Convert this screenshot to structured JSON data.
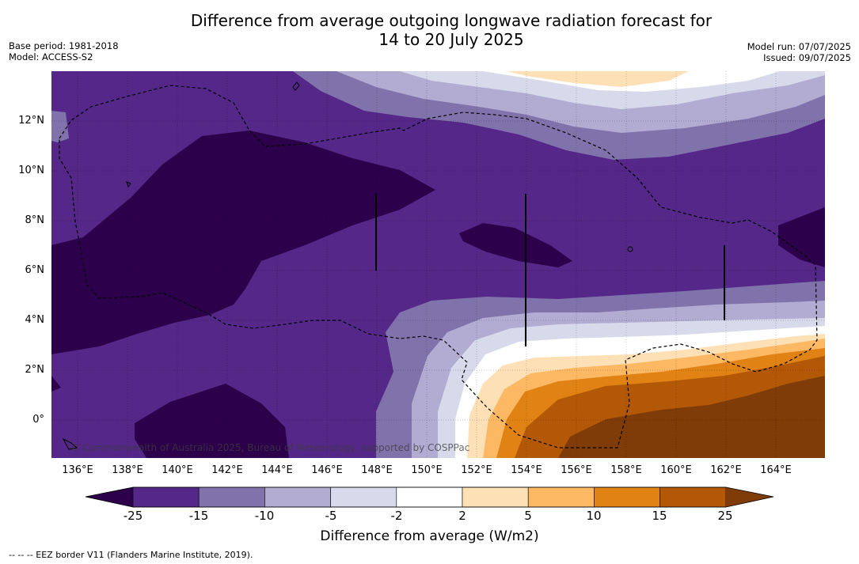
{
  "title_line1": "Difference from average outgoing longwave radiation forecast for",
  "title_line2": "14 to 20 July 2025",
  "base_period": "Base period: 1981-2018",
  "model": "Model: ACCESS-S2",
  "model_run": "Model run: 07/07/2025",
  "issued": "Issued: 09/07/2025",
  "copyright": "© Commonwealth of Australia 2025, Bureau of Meteorology, supported by COSPPac",
  "colorbar_label": "Difference from average (W/m2)",
  "footnote": "--  --  -- EEZ border V11 (Flanders Marine Institute, 2019).",
  "lat_labels": [
    "12°N",
    "10°N",
    "8°N",
    "6°N",
    "4°N",
    "2°N",
    "0°"
  ],
  "lon_labels": [
    "136°E",
    "138°E",
    "140°E",
    "142°E",
    "144°E",
    "146°E",
    "148°E",
    "150°E",
    "152°E",
    "154°E",
    "156°E",
    "158°E",
    "160°E",
    "162°E",
    "164°E"
  ],
  "colorbar_ticks": [
    "-25",
    "-15",
    "-10",
    "-5",
    "-2",
    "2",
    "5",
    "10",
    "15",
    "25"
  ],
  "colorbar_colors": [
    "#2d004b",
    "#542788",
    "#8073ac",
    "#b2abd2",
    "#d8daeb",
    "#ffffff",
    "#fee0b6",
    "#fdb863",
    "#e08214",
    "#b35806",
    "#7f3b08"
  ]
}
